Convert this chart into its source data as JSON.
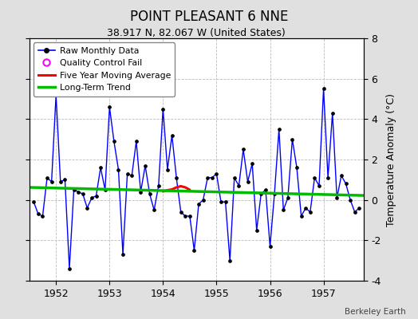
{
  "title": "POINT PLEASANT 6 NNE",
  "subtitle": "38.917 N, 82.067 W (United States)",
  "ylabel": "Temperature Anomaly (°C)",
  "credit": "Berkeley Earth",
  "ylim": [
    -4,
    8
  ],
  "yticks": [
    -4,
    -2,
    0,
    2,
    4,
    6,
    8
  ],
  "xlim": [
    1951.5,
    1957.75
  ],
  "xticks": [
    1952,
    1953,
    1954,
    1955,
    1956,
    1957
  ],
  "fig_bg_color": "#e0e0e0",
  "plot_bg_color": "#ffffff",
  "raw_color": "#0000ff",
  "marker_color": "#000000",
  "ma_color": "#ff0000",
  "trend_color": "#00bb00",
  "raw_x": [
    1951.583,
    1951.667,
    1951.75,
    1951.833,
    1951.917,
    1952.0,
    1952.083,
    1952.167,
    1952.25,
    1952.333,
    1952.417,
    1952.5,
    1952.583,
    1952.667,
    1952.75,
    1952.833,
    1952.917,
    1953.0,
    1953.083,
    1953.167,
    1953.25,
    1953.333,
    1953.417,
    1953.5,
    1953.583,
    1953.667,
    1953.75,
    1953.833,
    1953.917,
    1954.0,
    1954.083,
    1954.167,
    1954.25,
    1954.333,
    1954.417,
    1954.5,
    1954.583,
    1954.667,
    1954.75,
    1954.833,
    1954.917,
    1955.0,
    1955.083,
    1955.167,
    1955.25,
    1955.333,
    1955.417,
    1955.5,
    1955.583,
    1955.667,
    1955.75,
    1955.833,
    1955.917,
    1956.0,
    1956.083,
    1956.167,
    1956.25,
    1956.333,
    1956.417,
    1956.5,
    1956.583,
    1956.667,
    1956.75,
    1956.833,
    1956.917,
    1957.0,
    1957.083,
    1957.167,
    1957.25,
    1957.333,
    1957.417,
    1957.5,
    1957.583,
    1957.667
  ],
  "raw_y": [
    -0.1,
    -0.7,
    -0.8,
    1.1,
    0.9,
    5.2,
    0.9,
    1.0,
    -3.4,
    0.5,
    0.4,
    0.3,
    -0.4,
    0.1,
    0.2,
    1.6,
    0.5,
    4.6,
    2.9,
    1.5,
    -2.7,
    1.3,
    1.2,
    2.9,
    0.4,
    1.7,
    0.3,
    -0.5,
    0.7,
    4.5,
    1.5,
    3.2,
    1.1,
    -0.6,
    -0.8,
    -0.8,
    -2.5,
    -0.2,
    0.0,
    1.1,
    1.1,
    1.3,
    -0.1,
    -0.1,
    -3.0,
    1.1,
    0.7,
    2.5,
    0.9,
    1.8,
    -1.5,
    0.3,
    0.5,
    -2.3,
    0.3,
    3.5,
    -0.5,
    0.1,
    3.0,
    1.6,
    -0.8,
    -0.4,
    -0.6,
    1.1,
    0.7,
    5.5,
    1.1,
    4.3,
    0.1,
    1.2,
    0.8,
    0.0,
    -0.6,
    -0.4
  ],
  "ma_x": [
    1954.0,
    1954.083,
    1954.167,
    1954.25,
    1954.333,
    1954.417,
    1954.5
  ],
  "ma_y": [
    0.42,
    0.48,
    0.52,
    0.62,
    0.68,
    0.62,
    0.5
  ],
  "trend_x": [
    1951.5,
    1957.75
  ],
  "trend_y": [
    0.62,
    0.22
  ]
}
